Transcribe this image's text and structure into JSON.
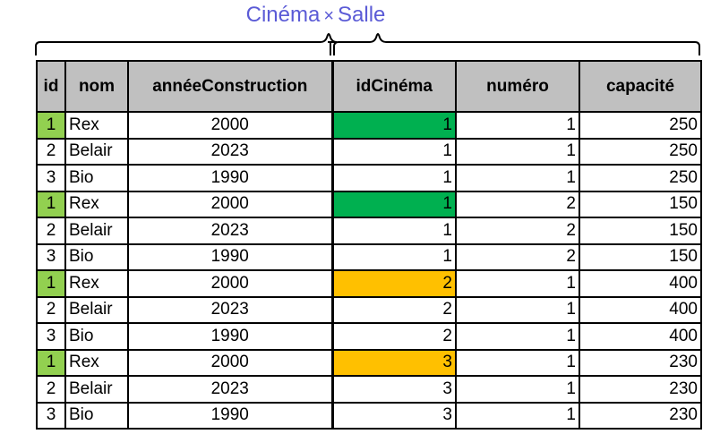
{
  "title": {
    "left": "Cinéma",
    "op": "×",
    "right": "Salle"
  },
  "headers": [
    "id",
    "nom",
    "annéeConstruction",
    "idCinéma",
    "numéro",
    "capacité"
  ],
  "rows": [
    {
      "id": "1",
      "nom": "Rex",
      "annee": "2000",
      "idCinema": "1",
      "numero": "1",
      "capacite": "250",
      "highlight": "green"
    },
    {
      "id": "2",
      "nom": "Belair",
      "annee": "2023",
      "idCinema": "1",
      "numero": "1",
      "capacite": "250",
      "highlight": ""
    },
    {
      "id": "3",
      "nom": "Bio",
      "annee": "1990",
      "idCinema": "1",
      "numero": "1",
      "capacite": "250",
      "highlight": ""
    },
    {
      "id": "1",
      "nom": "Rex",
      "annee": "2000",
      "idCinema": "1",
      "numero": "2",
      "capacite": "150",
      "highlight": "green"
    },
    {
      "id": "2",
      "nom": "Belair",
      "annee": "2023",
      "idCinema": "1",
      "numero": "2",
      "capacite": "150",
      "highlight": ""
    },
    {
      "id": "3",
      "nom": "Bio",
      "annee": "1990",
      "idCinema": "1",
      "numero": "2",
      "capacite": "150",
      "highlight": ""
    },
    {
      "id": "1",
      "nom": "Rex",
      "annee": "2000",
      "idCinema": "2",
      "numero": "1",
      "capacite": "400",
      "highlight": "orange"
    },
    {
      "id": "2",
      "nom": "Belair",
      "annee": "2023",
      "idCinema": "2",
      "numero": "1",
      "capacite": "400",
      "highlight": ""
    },
    {
      "id": "3",
      "nom": "Bio",
      "annee": "1990",
      "idCinema": "2",
      "numero": "1",
      "capacite": "400",
      "highlight": ""
    },
    {
      "id": "1",
      "nom": "Rex",
      "annee": "2000",
      "idCinema": "3",
      "numero": "1",
      "capacite": "230",
      "highlight": "orange"
    },
    {
      "id": "2",
      "nom": "Belair",
      "annee": "2023",
      "idCinema": "3",
      "numero": "1",
      "capacite": "230",
      "highlight": ""
    },
    {
      "id": "3",
      "nom": "Bio",
      "annee": "1990",
      "idCinema": "3",
      "numero": "1",
      "capacite": "230",
      "highlight": ""
    }
  ],
  "colors": {
    "highlight_green": "#00b050",
    "highlight_orange": "#ffc000",
    "id_green": "#92d050",
    "header_bg": "#c0c0c0",
    "title_color": "#5b5bd6"
  }
}
